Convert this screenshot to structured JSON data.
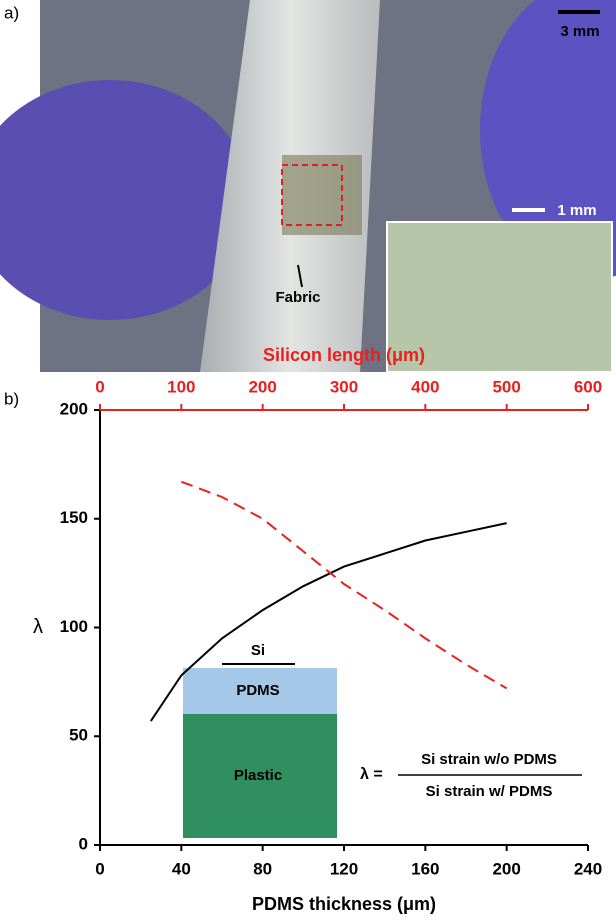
{
  "panel_a": {
    "label": "a)",
    "scale_main": "3 mm",
    "scale_inset": "1 mm",
    "annotation": "Fabric"
  },
  "panel_b_label": "b)",
  "chart_data": {
    "type": "line",
    "xlabel": "PDMS thickness (μm)",
    "x2label": "Silicon length (μm)",
    "ylabel": "λ",
    "xlim": [
      0,
      240
    ],
    "xticks": [
      0,
      40,
      80,
      120,
      160,
      200,
      240
    ],
    "x2lim": [
      0,
      600
    ],
    "x2ticks": [
      0,
      100,
      200,
      300,
      400,
      500,
      600
    ],
    "ylim": [
      0,
      200
    ],
    "yticks": [
      0,
      50,
      100,
      150,
      200
    ],
    "series": [
      {
        "color": "#000000",
        "dash": false,
        "x": [
          25,
          40,
          60,
          80,
          100,
          120,
          140,
          160,
          180,
          200
        ],
        "values": [
          57,
          78,
          95,
          108,
          119,
          128,
          134,
          140,
          144,
          148
        ]
      },
      {
        "color": "#e8211f",
        "dash": true,
        "axis": "x2",
        "x": [
          100,
          150,
          200,
          250,
          300,
          350,
          400,
          450,
          500
        ],
        "values": [
          167,
          160,
          150,
          135,
          120,
          108,
          95,
          83,
          72
        ]
      }
    ],
    "inset_labels": [
      "Si",
      "PDMS",
      "Plastic"
    ],
    "formula": {
      "lhs": "λ =",
      "numerator": "Si strain w/o PDMS",
      "denominator": "Si strain w/ PDMS"
    }
  }
}
